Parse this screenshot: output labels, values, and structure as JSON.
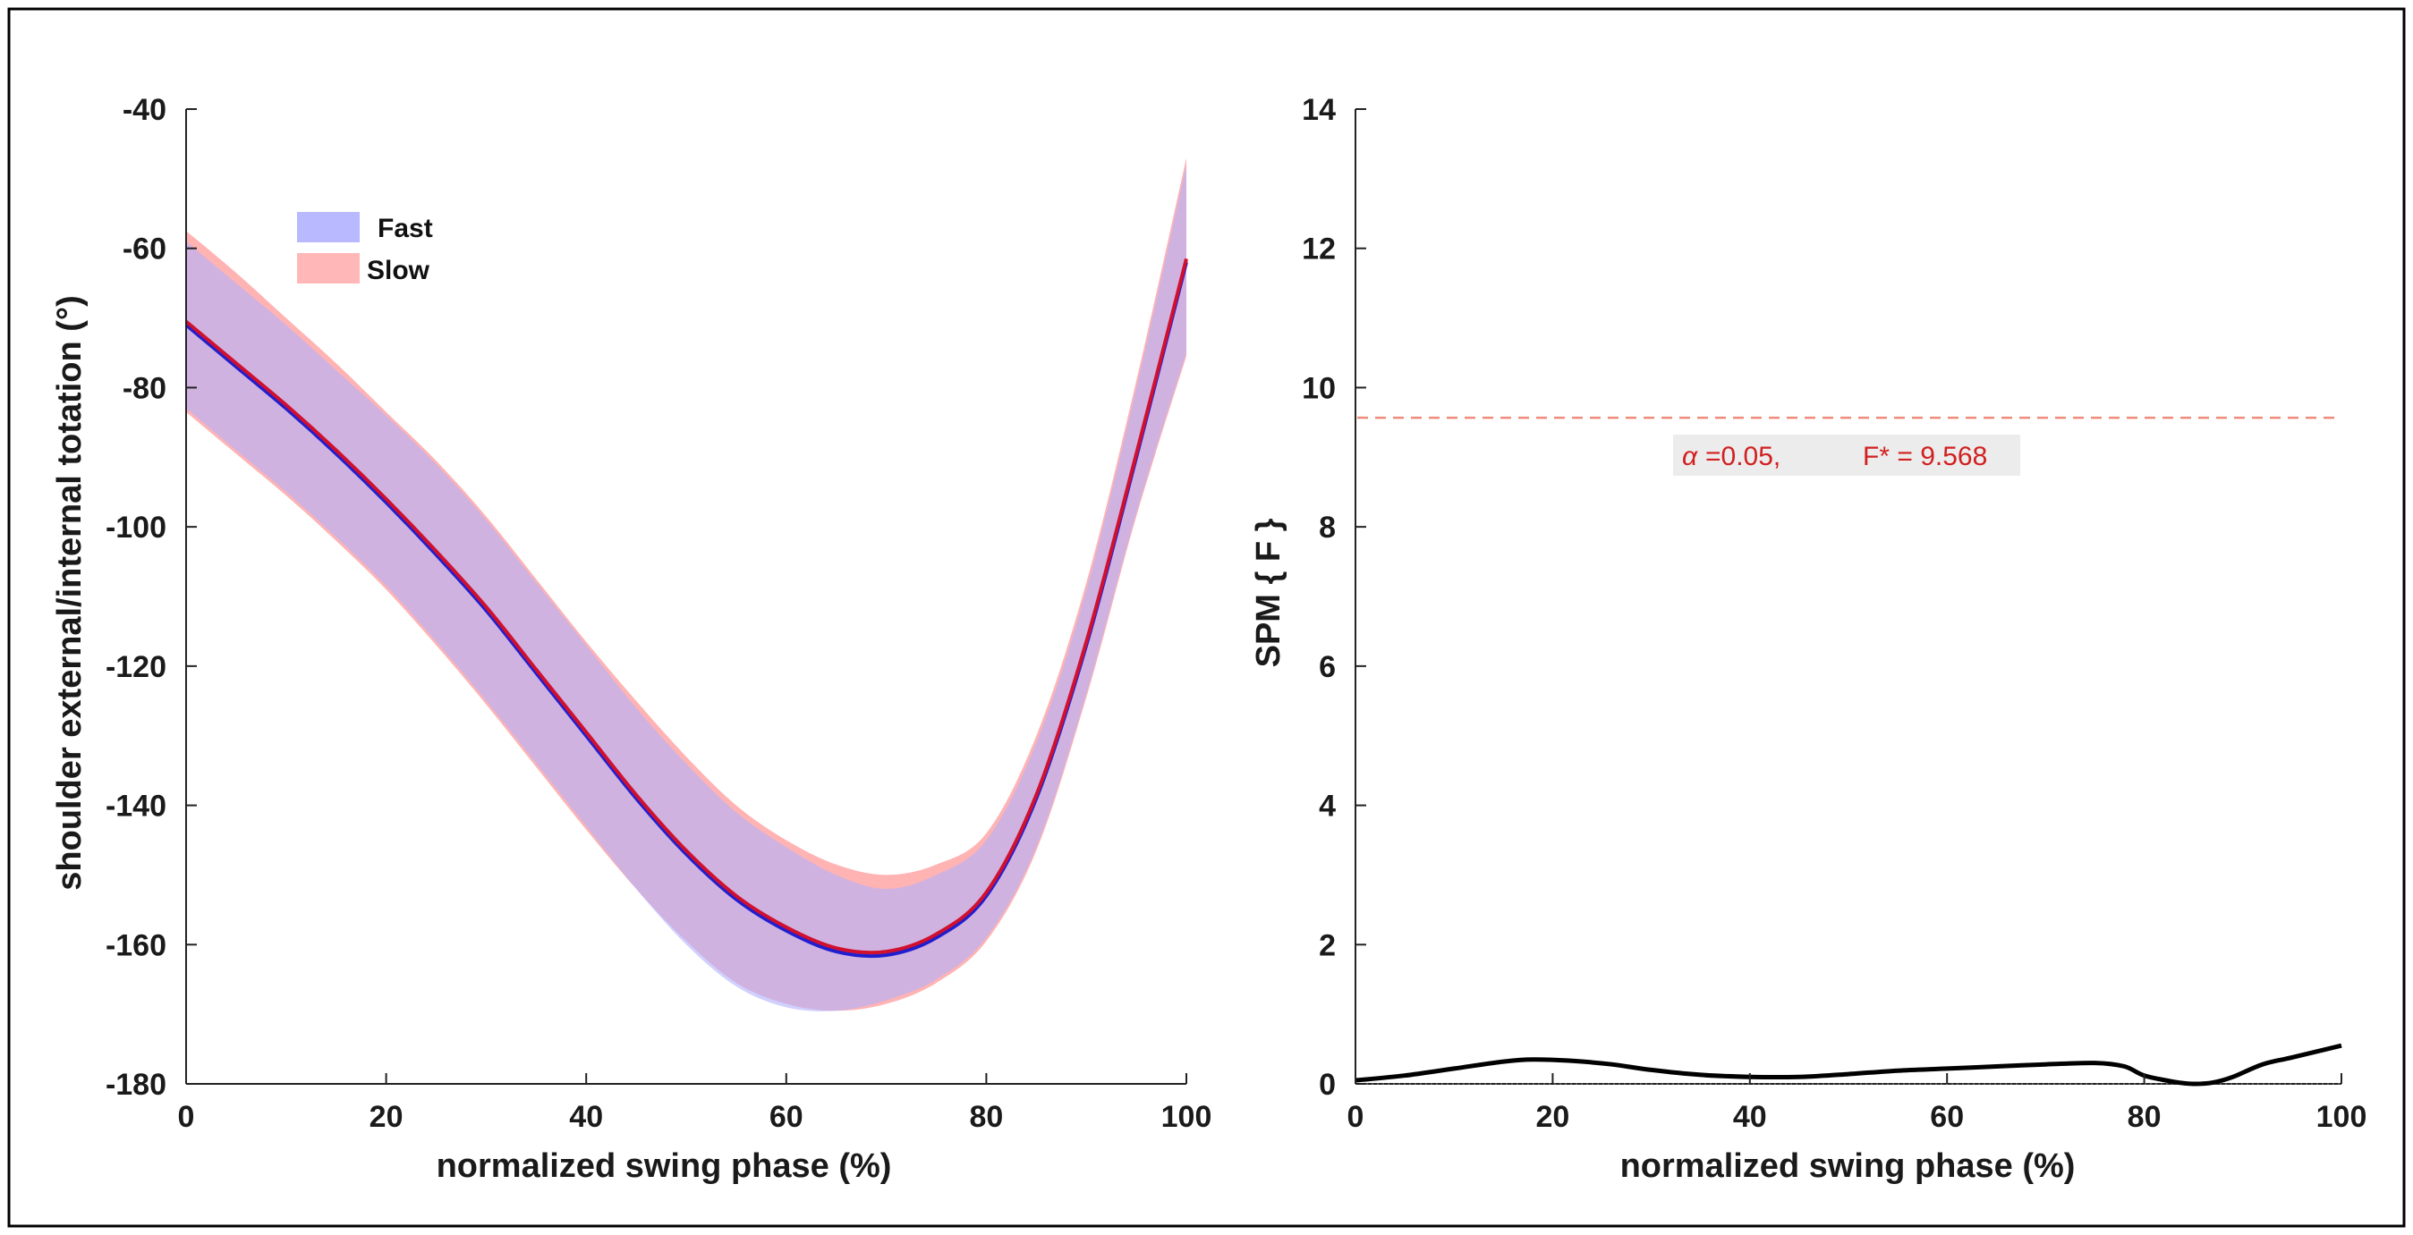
{
  "chart_data": [
    {
      "type": "line",
      "xlabel": "normalized swing phase (%)",
      "ylabel": "shoulder external/internal totation (°)",
      "xlim": [
        0,
        100
      ],
      "ylim": [
        -180,
        -40
      ],
      "xticks": [
        0,
        20,
        40,
        60,
        80,
        100
      ],
      "yticks": [
        -180,
        -160,
        -140,
        -120,
        -100,
        -80,
        -60,
        -40
      ],
      "legend": {
        "position": "top-left"
      },
      "series": [
        {
          "name": "Fast",
          "color": "#1f1fd0",
          "band_color": "#b0b0ff",
          "x": [
            0,
            5,
            10,
            15,
            20,
            25,
            30,
            35,
            40,
            45,
            50,
            55,
            60,
            65,
            70,
            75,
            80,
            85,
            90,
            95,
            100
          ],
          "mean": [
            -71,
            -77,
            -83,
            -89.5,
            -96.5,
            -104,
            -112,
            -121,
            -130,
            -139,
            -147,
            -153.5,
            -158,
            -161,
            -161.5,
            -159,
            -153,
            -139,
            -117,
            -90,
            -62
          ],
          "upper": [
            -59,
            -65,
            -71,
            -77.5,
            -84,
            -91,
            -99,
            -108,
            -117,
            -126,
            -134,
            -141,
            -146,
            -150,
            -152,
            -150,
            -145,
            -131,
            -109,
            -80,
            -48
          ],
          "lower": [
            -83,
            -89,
            -95,
            -101.5,
            -108.5,
            -116.5,
            -125,
            -134,
            -143,
            -152,
            -160,
            -166,
            -169,
            -169.5,
            -168,
            -165,
            -159,
            -146,
            -124,
            -98,
            -75
          ]
        },
        {
          "name": "Slow",
          "color": "#d0102e",
          "band_color": "#ffb3b3",
          "x": [
            0,
            5,
            10,
            15,
            20,
            25,
            30,
            35,
            40,
            45,
            50,
            55,
            60,
            65,
            70,
            75,
            80,
            85,
            90,
            95,
            100
          ],
          "mean": [
            -70.5,
            -76.5,
            -82.5,
            -89,
            -96,
            -103.5,
            -111.5,
            -120.5,
            -129.5,
            -138.5,
            -146.5,
            -153,
            -157.5,
            -160.5,
            -161,
            -158.5,
            -152.5,
            -138.5,
            -116.5,
            -89.5,
            -61.5
          ],
          "upper": [
            -57.5,
            -63.5,
            -70,
            -76.5,
            -83.5,
            -90.5,
            -98.5,
            -107.5,
            -116.5,
            -125,
            -133,
            -140,
            -145,
            -148.5,
            -150,
            -148.5,
            -144,
            -130,
            -108,
            -79,
            -47
          ],
          "lower": [
            -83.5,
            -89.5,
            -95.5,
            -102,
            -109,
            -117,
            -125.5,
            -134.5,
            -143.5,
            -152,
            -159.5,
            -165.5,
            -168.5,
            -169.5,
            -168.5,
            -165.5,
            -159.5,
            -146.5,
            -124.5,
            -98.5,
            -75.5
          ]
        }
      ]
    },
    {
      "type": "line",
      "xlabel": "normalized swing phase (%)",
      "ylabel": "SPM { F }",
      "xlim": [
        0,
        100
      ],
      "ylim": [
        0,
        14
      ],
      "xticks": [
        0,
        20,
        40,
        60,
        80,
        100
      ],
      "yticks": [
        0,
        2,
        4,
        6,
        8,
        10,
        12,
        14
      ],
      "threshold": 9.568,
      "annotation": {
        "alpha_symbol": "α",
        "alpha_text": "=0.05,",
        "fstar_text": "F* = 9.568"
      },
      "series": [
        {
          "name": "SPM{F}",
          "color": "#000000",
          "x": [
            0,
            5,
            10,
            15,
            18,
            22,
            26,
            30,
            35,
            40,
            45,
            50,
            55,
            60,
            65,
            70,
            75,
            78,
            80,
            83,
            85,
            87,
            89,
            92,
            95,
            100
          ],
          "values": [
            0.05,
            0.12,
            0.22,
            0.32,
            0.35,
            0.33,
            0.28,
            0.2,
            0.13,
            0.1,
            0.1,
            0.14,
            0.19,
            0.22,
            0.25,
            0.28,
            0.3,
            0.25,
            0.12,
            0.03,
            0.0,
            0.02,
            0.1,
            0.28,
            0.38,
            0.55
          ]
        }
      ]
    }
  ]
}
